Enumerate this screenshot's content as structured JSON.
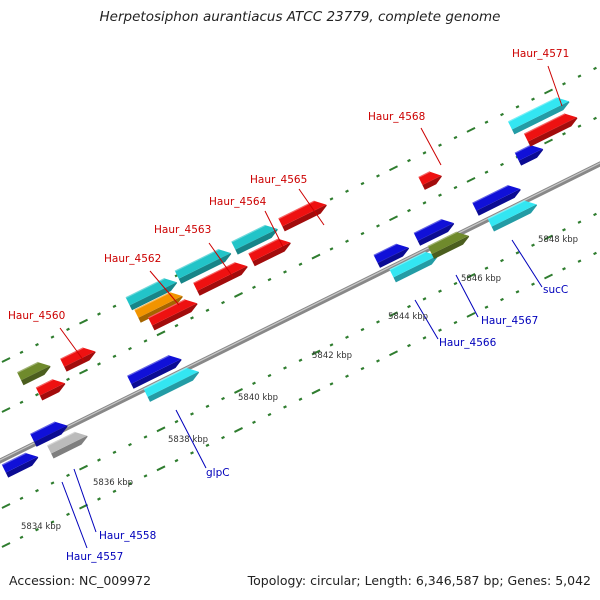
{
  "title": "Herpetosiphon aurantiacus ATCC 23779, complete genome",
  "footer": {
    "accession": "Accession: NC_009972",
    "summary": "Topology: circular; Length: 6,346,587 bp; Genes: 5,042"
  },
  "colors": {
    "upper_label": "#cc0000",
    "lower_label": "#0000bb",
    "dark_blue": "#1010d8",
    "cyan": "#33e6f2",
    "teal": "#22c4c8",
    "red": "#ee1111",
    "olive": "#6f8a2c",
    "orange": "#f29400",
    "gray": "#bbbbbb",
    "backbone": "#888888",
    "ticks": "#2f7d2f"
  },
  "ticks": [
    "5834 kbp",
    "5836 kbp",
    "5838 kbp",
    "5840 kbp",
    "5842 kbp",
    "5844 kbp",
    "5846 kbp",
    "5848 kbp"
  ],
  "upper_labels": [
    "Haur_4560",
    "Haur_4562",
    "Haur_4563",
    "Haur_4564",
    "Haur_4565",
    "Haur_4568",
    "Haur_4571"
  ],
  "lower_labels": [
    "Haur_4557",
    "Haur_4558",
    "glpC",
    "Haur_4566",
    "Haur_4567",
    "sucC"
  ]
}
